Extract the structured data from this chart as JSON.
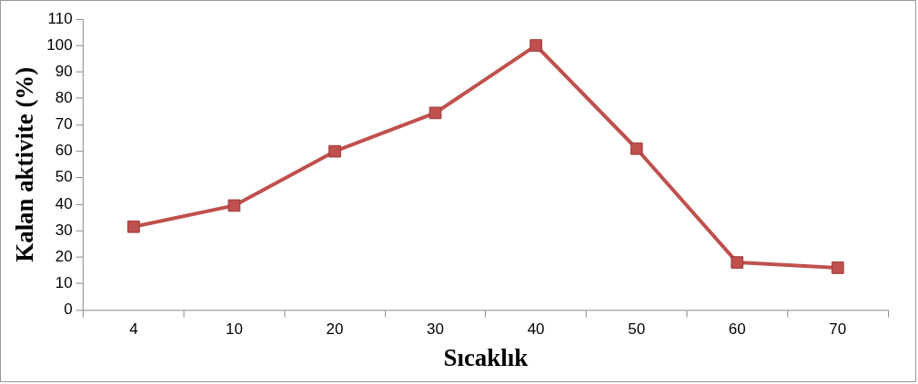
{
  "chart_data": {
    "type": "line",
    "xlabel": "Sıcaklık",
    "ylabel": "Kalan aktivite (%)",
    "categories": [
      "4",
      "10",
      "20",
      "30",
      "40",
      "50",
      "60",
      "70"
    ],
    "series": [
      {
        "color": "#c0504d",
        "values": [
          31.5,
          39.5,
          60,
          74.5,
          100,
          61,
          18,
          16
        ]
      }
    ],
    "ylim": [
      0,
      110
    ],
    "yticks": [
      0,
      10,
      20,
      30,
      40,
      50,
      60,
      70,
      80,
      90,
      100,
      110
    ],
    "grid": false,
    "legend": false,
    "marker": "square",
    "line_style": "solid"
  }
}
